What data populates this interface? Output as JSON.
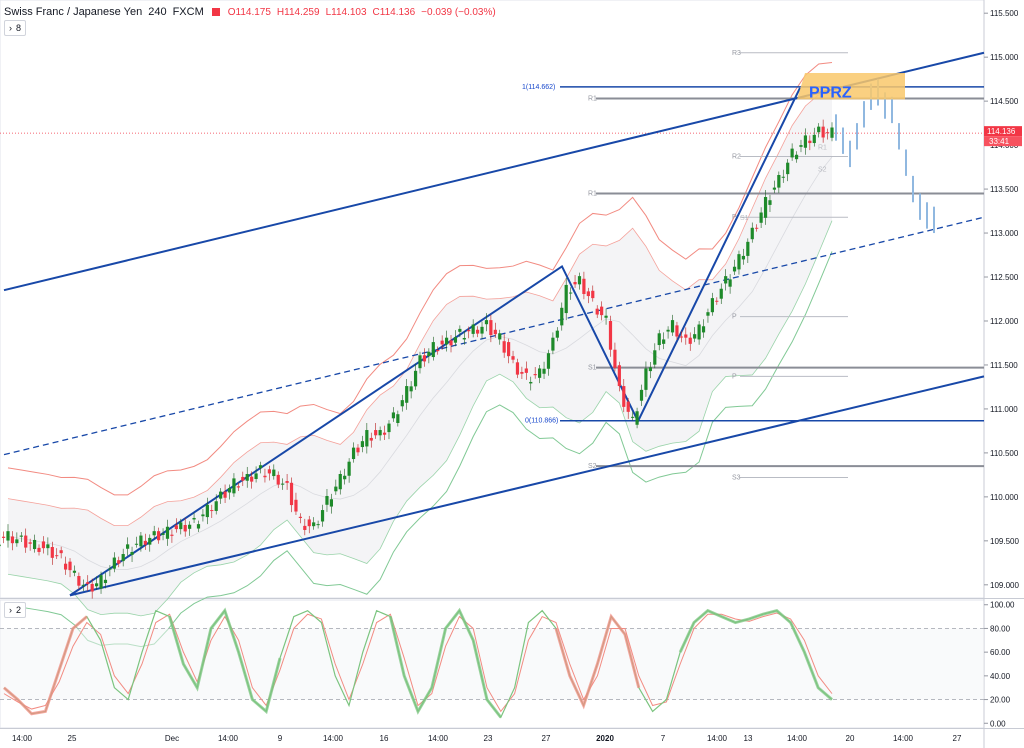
{
  "header": {
    "symbol": "Swiss Franc / Japanese Yen",
    "interval": "240",
    "source": "FXCM",
    "open": "O114.175",
    "high": "H114.259",
    "low": "L114.103",
    "close": "C114.136",
    "change": "−0.039 (−0.03%)"
  },
  "main_indicator_count": "8",
  "osc_indicator_count": "2",
  "annotation_text": "PPRZ",
  "fib": {
    "top": "1(114.662)",
    "bottom": "0(110.866)"
  },
  "pivots": {
    "current": [
      "R3",
      "R1",
      "R2",
      "R1",
      "P",
      "P",
      "S1",
      "P",
      "S2",
      "S3"
    ],
    "faded": [
      "R1",
      "S2",
      "S1"
    ]
  },
  "last_price": "114.136",
  "countdown": "33:41",
  "colors": {
    "up": "#26a69a",
    "up_fill": "#1e8a2a",
    "down": "#f23645",
    "trend": "#1848a8",
    "bb_upper": "#f28b82",
    "bb_lower": "#81c995",
    "pprz_fill": "#f9c86b",
    "stoch_k": "#7bc47f",
    "stoch_d": "#f28b82"
  },
  "chart_data": [
    {
      "type": "candlestick",
      "title": "Swiss Franc / Japanese Yen",
      "ylim": [
        108.85,
        115.65
      ],
      "y_ticks": [
        "115.500",
        "115.000",
        "114.500",
        "114.000",
        "113.500",
        "113.000",
        "112.500",
        "112.000",
        "111.500",
        "111.000",
        "110.500",
        "110.000",
        "109.500",
        "109.000"
      ],
      "x_ticks": [
        "14:00",
        "25",
        "Dec",
        "14:00",
        "9",
        "14:00",
        "16",
        "14:00",
        "23",
        "27",
        "2020",
        "7",
        "14:00",
        "13",
        "14:00",
        "20",
        "14:00",
        "27"
      ],
      "close_series": [
        109.55,
        109.5,
        109.45,
        109.4,
        109.3,
        109.1,
        108.95,
        109.05,
        109.25,
        109.4,
        109.5,
        109.55,
        109.6,
        109.65,
        109.7,
        109.85,
        110.0,
        110.15,
        110.2,
        110.3,
        110.25,
        110.1,
        109.7,
        109.65,
        109.95,
        110.2,
        110.5,
        110.7,
        110.7,
        110.9,
        111.2,
        111.55,
        111.7,
        111.75,
        111.85,
        111.9,
        111.95,
        111.8,
        111.5,
        111.35,
        111.4,
        111.75,
        112.35,
        112.45,
        112.2,
        112.0,
        111.2,
        110.85,
        111.4,
        111.8,
        111.95,
        111.75,
        111.9,
        112.2,
        112.45,
        112.7,
        113.0,
        113.35,
        113.6,
        113.9,
        114.05,
        114.15,
        114.14
      ],
      "projection": [
        114.2,
        114.05,
        113.9,
        114.1,
        114.35,
        114.55,
        114.6,
        114.45,
        114.4,
        114.1,
        113.8,
        113.5,
        113.3,
        113.2,
        113.15
      ]
    },
    {
      "type": "line",
      "title": "Stochastic",
      "ylim": [
        -4,
        104
      ],
      "y_ticks": [
        "100.00",
        "80.00",
        "60.00",
        "40.00",
        "20.00",
        "0.00"
      ],
      "series": [
        {
          "values": [
            30,
            20,
            8,
            10,
            45,
            80,
            90,
            70,
            30,
            20,
            60,
            95,
            90,
            50,
            30,
            80,
            95,
            60,
            20,
            10,
            55,
            90,
            95,
            85,
            40,
            15,
            60,
            95,
            90,
            40,
            10,
            30,
            80,
            95,
            70,
            20,
            5,
            30,
            85,
            95,
            80,
            40,
            15,
            50,
            90,
            75,
            30,
            10,
            20,
            60,
            85,
            95,
            90,
            85,
            88,
            92,
            95,
            85,
            60,
            30,
            20
          ]
        },
        {
          "values": [
            25,
            18,
            12,
            15,
            35,
            65,
            85,
            75,
            40,
            25,
            50,
            85,
            92,
            60,
            35,
            70,
            90,
            70,
            30,
            15,
            45,
            80,
            92,
            88,
            50,
            20,
            50,
            85,
            92,
            55,
            15,
            25,
            65,
            90,
            80,
            30,
            10,
            25,
            70,
            90,
            85,
            50,
            20,
            40,
            80,
            80,
            40,
            15,
            18,
            50,
            80,
            92,
            92,
            88,
            86,
            90,
            93,
            88,
            70,
            40,
            25
          ]
        }
      ]
    }
  ]
}
